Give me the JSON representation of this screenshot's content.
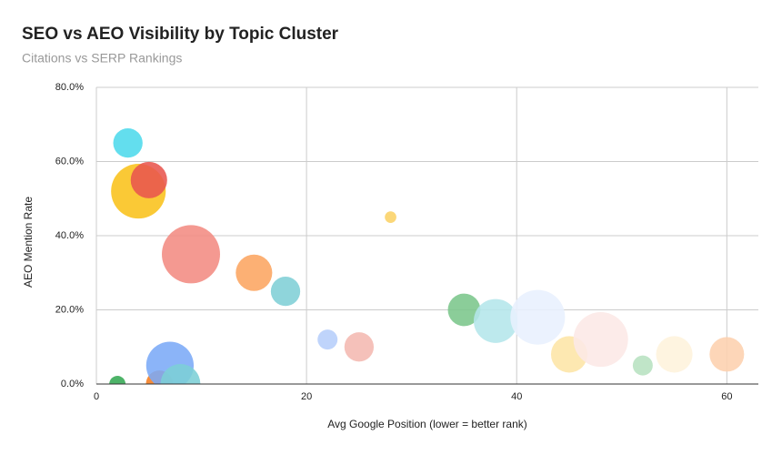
{
  "chart_data": {
    "type": "bubble",
    "title": "SEO vs AEO Visibility by Topic Cluster",
    "subtitle": "Citations vs SERP Rankings",
    "x_label": "Avg Google Position (lower = better rank)",
    "y_label": "AEO Mention Rate",
    "xlim": [
      0,
      63
    ],
    "xticks": [
      0,
      20,
      40,
      60
    ],
    "ylim": [
      0,
      80
    ],
    "yticks": [
      {
        "value": 0,
        "label": "0.0%"
      },
      {
        "value": 20,
        "label": "20.0%"
      },
      {
        "value": 40,
        "label": "40.0%"
      },
      {
        "value": 60,
        "label": "60.0%"
      },
      {
        "value": 80,
        "label": "80.0%"
      }
    ],
    "grid": true,
    "series": [
      {
        "x": [
          3,
          4,
          5,
          9,
          28,
          15,
          18,
          22,
          25,
          35,
          38,
          42,
          45,
          48,
          52,
          55,
          60,
          2,
          6,
          7,
          8
        ],
        "values": [
          65,
          52,
          55,
          35,
          45,
          30,
          25,
          12,
          10,
          20,
          17,
          18,
          8,
          12,
          5,
          8,
          8,
          0,
          0,
          5,
          0
        ],
        "sizes": [
          26,
          90,
          40,
          102,
          4,
          40,
          26,
          12,
          26,
          32,
          58,
          90,
          40,
          90,
          12,
          40,
          36,
          8,
          22,
          68,
          48
        ],
        "colors": [
          "#4dd9ec",
          "#f9c21a",
          "#e8554e",
          "#f28b82",
          "#fad165",
          "#fca561",
          "#7fcfd6",
          "#b6cefa",
          "#f4b8b0",
          "#7bc68b",
          "#b4e6ea",
          "#e8f0fe",
          "#fde5a6",
          "#fce8e6",
          "#b7e1c0",
          "#fef3dc",
          "#fdd0ae",
          "#34a853",
          "#f57c1f",
          "#7baaf7",
          "#7ccfd6"
        ]
      }
    ]
  }
}
